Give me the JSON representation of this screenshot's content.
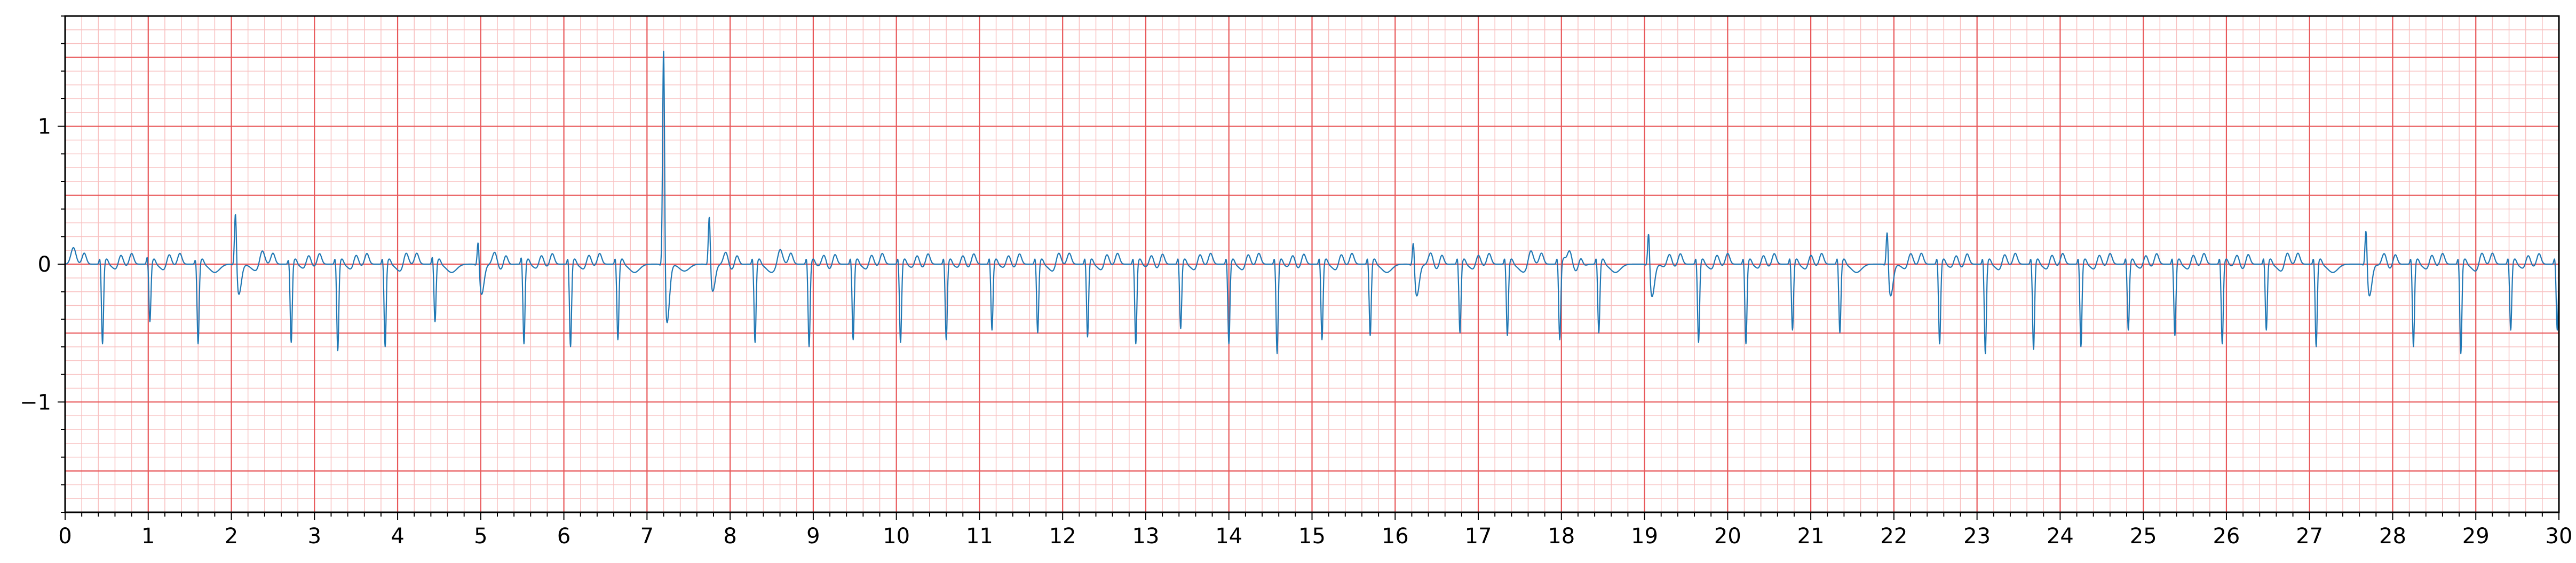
{
  "chart_data": {
    "type": "line",
    "title": "",
    "xlabel": "",
    "ylabel": "",
    "xlim": [
      0,
      30
    ],
    "ylim": [
      -1.8,
      1.8
    ],
    "grid": true,
    "x_ticks": [
      0,
      1,
      2,
      3,
      4,
      5,
      6,
      7,
      8,
      9,
      10,
      11,
      12,
      13,
      14,
      15,
      16,
      17,
      18,
      19,
      20,
      21,
      22,
      23,
      24,
      25,
      26,
      27,
      28,
      29,
      30
    ],
    "x_tick_labels": [
      "0",
      "1",
      "2",
      "3",
      "4",
      "5",
      "6",
      "7",
      "8",
      "9",
      "10",
      "11",
      "12",
      "13",
      "14",
      "15",
      "16",
      "17",
      "18",
      "19",
      "20",
      "21",
      "22",
      "23",
      "24",
      "25",
      "26",
      "27",
      "28",
      "29",
      "30"
    ],
    "y_ticks": [
      -1,
      0,
      1
    ],
    "y_tick_labels": [
      "−1",
      "0",
      "1"
    ],
    "major_grid_color": "#e8585a",
    "minor_grid_color": "#f8c0c0",
    "line_color": "#1f77b4",
    "series": [
      {
        "beats": [
          {
            "t": 0.45,
            "r": 0.05,
            "s": -0.58
          },
          {
            "t": 1.02,
            "r": 0.06,
            "s": -0.42
          },
          {
            "t": 1.6,
            "r": 0.04,
            "s": -0.58
          },
          {
            "t": 2.05,
            "r": 0.45,
            "s": -0.4,
            "ectopic": true
          },
          {
            "t": 2.72,
            "r": 0.04,
            "s": -0.57
          },
          {
            "t": 3.28,
            "r": 0.05,
            "s": -0.63
          },
          {
            "t": 3.85,
            "r": 0.05,
            "s": -0.6
          },
          {
            "t": 4.45,
            "r": 0.06,
            "s": -0.42
          },
          {
            "t": 4.97,
            "r": 0.24,
            "s": -0.4,
            "ectopic": true
          },
          {
            "t": 5.52,
            "r": 0.06,
            "s": -0.58
          },
          {
            "t": 6.08,
            "r": 0.05,
            "s": -0.6
          },
          {
            "t": 6.65,
            "r": 0.05,
            "s": -0.55
          },
          {
            "t": 7.2,
            "r": 1.72,
            "s": -0.78,
            "ectopic": true
          },
          {
            "t": 7.75,
            "r": 0.42,
            "s": -0.36,
            "ectopic": true
          },
          {
            "t": 8.3,
            "r": 0.05,
            "s": -0.57
          },
          {
            "t": 8.95,
            "r": 0.05,
            "s": -0.6
          },
          {
            "t": 9.48,
            "r": 0.05,
            "s": -0.55
          },
          {
            "t": 10.05,
            "r": 0.05,
            "s": -0.57
          },
          {
            "t": 10.6,
            "r": 0.05,
            "s": -0.55
          },
          {
            "t": 11.15,
            "r": 0.05,
            "s": -0.48
          },
          {
            "t": 11.7,
            "r": 0.05,
            "s": -0.5
          },
          {
            "t": 12.3,
            "r": 0.05,
            "s": -0.53
          },
          {
            "t": 12.88,
            "r": 0.05,
            "s": -0.58
          },
          {
            "t": 13.42,
            "r": 0.05,
            "s": -0.47
          },
          {
            "t": 14.0,
            "r": 0.05,
            "s": -0.58
          },
          {
            "t": 14.58,
            "r": 0.05,
            "s": -0.65
          },
          {
            "t": 15.12,
            "r": 0.05,
            "s": -0.55
          },
          {
            "t": 15.7,
            "r": 0.05,
            "s": -0.52
          },
          {
            "t": 16.22,
            "r": 0.24,
            "s": -0.42,
            "ectopic": true
          },
          {
            "t": 16.78,
            "r": 0.05,
            "s": -0.5
          },
          {
            "t": 17.35,
            "r": 0.05,
            "s": -0.52
          },
          {
            "t": 17.98,
            "r": 0.05,
            "s": -0.55
          },
          {
            "t": 18.45,
            "r": 0.05,
            "s": -0.5
          },
          {
            "t": 19.05,
            "r": 0.31,
            "s": -0.43,
            "ectopic": true
          },
          {
            "t": 19.65,
            "r": 0.05,
            "s": -0.57
          },
          {
            "t": 20.22,
            "r": 0.05,
            "s": -0.58
          },
          {
            "t": 20.78,
            "r": 0.05,
            "s": -0.48
          },
          {
            "t": 21.35,
            "r": 0.05,
            "s": -0.5
          },
          {
            "t": 21.92,
            "r": 0.32,
            "s": -0.42,
            "ectopic": true
          },
          {
            "t": 22.55,
            "r": 0.05,
            "s": -0.58
          },
          {
            "t": 23.1,
            "r": 0.05,
            "s": -0.65
          },
          {
            "t": 23.68,
            "r": 0.05,
            "s": -0.62
          },
          {
            "t": 24.25,
            "r": 0.05,
            "s": -0.6
          },
          {
            "t": 24.82,
            "r": 0.05,
            "s": -0.48
          },
          {
            "t": 25.38,
            "r": 0.05,
            "s": -0.52
          },
          {
            "t": 25.95,
            "r": 0.05,
            "s": -0.58
          },
          {
            "t": 26.48,
            "r": 0.05,
            "s": -0.48
          },
          {
            "t": 27.08,
            "r": 0.05,
            "s": -0.6
          },
          {
            "t": 27.68,
            "r": 0.33,
            "s": -0.42,
            "ectopic": true
          },
          {
            "t": 28.25,
            "r": 0.05,
            "s": -0.6
          },
          {
            "t": 28.82,
            "r": 0.05,
            "s": -0.65
          },
          {
            "t": 29.42,
            "r": 0.05,
            "s": -0.48
          },
          {
            "t": 29.98,
            "r": 0.05,
            "s": -0.48
          }
        ]
      }
    ]
  }
}
